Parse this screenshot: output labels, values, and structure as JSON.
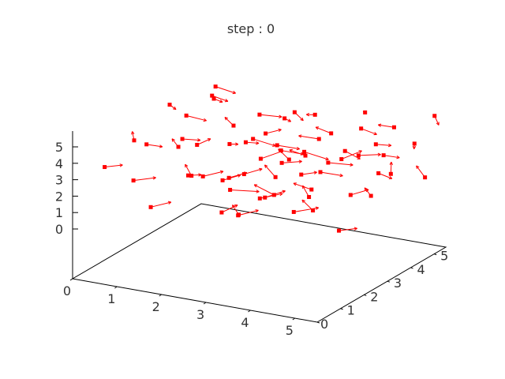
{
  "chart_data": {
    "type": "scatter",
    "projection": "3d",
    "title": "step : 0",
    "xlabel": "",
    "ylabel": "",
    "zlabel": "",
    "xlim": [
      0,
      5.5
    ],
    "ylim": [
      0,
      5.5
    ],
    "zlim": [
      0,
      6
    ],
    "x_ticks": [
      "0",
      "1",
      "2",
      "3",
      "4",
      "5"
    ],
    "y_ticks": [
      "0",
      "1",
      "2",
      "3",
      "4",
      "5"
    ],
    "z_ticks": [
      "0",
      "1",
      "2",
      "3",
      "4",
      "5"
    ],
    "grid": false,
    "legend": "none",
    "marker": "filled-square",
    "arrows": true,
    "color": "#ff0000",
    "series": [
      {
        "points": [
          {
            "x": 0.6,
            "y": 4.9,
            "z": 4.2,
            "dx": 0.3,
            "dy": -0.2,
            "dz": 0.1
          },
          {
            "x": 0.9,
            "y": 4.4,
            "z": 5.5,
            "dx": 0.4,
            "dy": 0.1,
            "dz": -0.3
          },
          {
            "x": 1.4,
            "y": 3.3,
            "z": 6.1,
            "dx": 0.2,
            "dy": 0.3,
            "dz": -0.5
          },
          {
            "x": 1.2,
            "y": 4.6,
            "z": 3.1,
            "dx": -0.3,
            "dy": 0.2,
            "dz": 0.2
          },
          {
            "x": 2.1,
            "y": 4.0,
            "z": 4.7,
            "dx": 0.5,
            "dy": 0.0,
            "dz": 0.1
          },
          {
            "x": 2.6,
            "y": 3.1,
            "z": 3.0,
            "dx": 0.3,
            "dy": 0.4,
            "dz": 0.3
          },
          {
            "x": 3.0,
            "y": 4.2,
            "z": 2.7,
            "dx": 0.6,
            "dy": -0.1,
            "dz": -0.1
          },
          {
            "x": 3.5,
            "y": 2.6,
            "z": 3.8,
            "dx": -0.4,
            "dy": 0.3,
            "dz": 0.2
          },
          {
            "x": 4.1,
            "y": 3.7,
            "z": 3.2,
            "dx": 0.3,
            "dy": 0.3,
            "dz": 0.4
          },
          {
            "x": 4.6,
            "y": 2.9,
            "z": 4.6,
            "dx": 0.5,
            "dy": -0.3,
            "dz": 0.0
          },
          {
            "x": 5.0,
            "y": 4.1,
            "z": 2.4,
            "dx": -0.2,
            "dy": 0.4,
            "dz": 0.3
          },
          {
            "x": 5.3,
            "y": 3.0,
            "z": 3.5,
            "dx": 0.2,
            "dy": 0.2,
            "dz": -0.4
          },
          {
            "x": 4.8,
            "y": 1.8,
            "z": 4.9,
            "dx": 0.4,
            "dy": 0.3,
            "dz": -0.2
          },
          {
            "x": 3.9,
            "y": 1.2,
            "z": 3.0,
            "dx": -0.5,
            "dy": 0.1,
            "dz": 0.3
          },
          {
            "x": 3.3,
            "y": 0.8,
            "z": 1.8,
            "dx": 0.3,
            "dy": 0.3,
            "dz": 0.2
          },
          {
            "x": 2.7,
            "y": 1.6,
            "z": 2.4,
            "dx": 0.6,
            "dy": 0.1,
            "dz": 0.1
          },
          {
            "x": 2.2,
            "y": 0.9,
            "z": 3.6,
            "dx": -0.3,
            "dy": 0.3,
            "dz": 0.3
          },
          {
            "x": 1.6,
            "y": 1.9,
            "z": 2.5,
            "dx": 0.4,
            "dy": -0.2,
            "dz": 0.4
          },
          {
            "x": 1.1,
            "y": 2.6,
            "z": 3.9,
            "dx": 0.3,
            "dy": 0.2,
            "dz": -0.1
          },
          {
            "x": 0.7,
            "y": 1.3,
            "z": 4.7,
            "dx": -0.2,
            "dy": 0.3,
            "dz": 0.2
          },
          {
            "x": 0.4,
            "y": 2.4,
            "z": 3.4,
            "dx": 0.2,
            "dy": 0.3,
            "dz": -0.3
          },
          {
            "x": 1.9,
            "y": 2.8,
            "z": 1.6,
            "dx": 0.3,
            "dy": 0.2,
            "dz": 0.3
          },
          {
            "x": 2.9,
            "y": 2.2,
            "z": 5.1,
            "dx": 0.4,
            "dy": 0.2,
            "dz": -0.4
          },
          {
            "x": 3.7,
            "y": 3.5,
            "z": 4.4,
            "dx": -0.3,
            "dy": -0.3,
            "dz": 0.3
          },
          {
            "x": 4.4,
            "y": 4.6,
            "z": 3.5,
            "dx": 0.4,
            "dy": -0.1,
            "dz": 0.2
          },
          {
            "x": 5.4,
            "y": 4.8,
            "z": 1.8,
            "dx": -0.3,
            "dy": 0.2,
            "dz": 0.4
          },
          {
            "x": 4.9,
            "y": 5.3,
            "z": 3.2,
            "dx": 0.2,
            "dy": -0.4,
            "dz": 0.1
          },
          {
            "x": 3.8,
            "y": 5.0,
            "z": 2.2,
            "dx": 0.5,
            "dy": 0.0,
            "dz": 0.3
          },
          {
            "x": 2.5,
            "y": 5.2,
            "z": 1.4,
            "dx": -0.2,
            "dy": -0.3,
            "dz": 0.5
          },
          {
            "x": 1.5,
            "y": 5.4,
            "z": 2.1,
            "dx": 0.3,
            "dy": 0.1,
            "dz": 0.3
          },
          {
            "x": 3.1,
            "y": 4.7,
            "z": 1.1,
            "dx": 0.4,
            "dy": 0.2,
            "dz": -0.2
          },
          {
            "x": 4.3,
            "y": 2.1,
            "z": 1.5,
            "dx": -0.4,
            "dy": 0.3,
            "dz": 0.2
          },
          {
            "x": 5.2,
            "y": 1.5,
            "z": 1.2,
            "dx": 0.2,
            "dy": 0.4,
            "dz": -0.1
          },
          {
            "x": 2.0,
            "y": 3.6,
            "z": 3.3,
            "dx": 0.4,
            "dy": -0.2,
            "dz": 0.3
          },
          {
            "x": 1.3,
            "y": 3.1,
            "z": 1.3,
            "dx": 0.3,
            "dy": 0.3,
            "dz": 0.2
          },
          {
            "x": 0.8,
            "y": 3.8,
            "z": 2.4,
            "dx": 0.2,
            "dy": 0.2,
            "dz": 0.3
          },
          {
            "x": 3.4,
            "y": 3.9,
            "z": 5.4,
            "dx": -0.3,
            "dy": 0.2,
            "dz": -0.3
          },
          {
            "x": 4.7,
            "y": 3.4,
            "z": 5.6,
            "dx": 0.3,
            "dy": 0.1,
            "dz": -0.3
          },
          {
            "x": 2.4,
            "y": 4.5,
            "z": 4.2,
            "dx": 0.3,
            "dy": -0.3,
            "dz": 0.2
          },
          {
            "x": 3.6,
            "y": 1.9,
            "z": 5.3,
            "dx": 0.4,
            "dy": 0.2,
            "dz": -0.2
          },
          {
            "x": 1.8,
            "y": 1.1,
            "z": 5.0,
            "dx": -0.3,
            "dy": 0.3,
            "dz": 0.1
          },
          {
            "x": 2.8,
            "y": 2.9,
            "z": 0.9,
            "dx": 0.3,
            "dy": 0.3,
            "dz": 0.3
          },
          {
            "x": 4.0,
            "y": 4.9,
            "z": 5.0,
            "dx": -0.2,
            "dy": 0.3,
            "dz": -0.3
          },
          {
            "x": 5.5,
            "y": 2.3,
            "z": 2.8,
            "dx": -0.3,
            "dy": 0.3,
            "dz": 0.1
          },
          {
            "x": 4.5,
            "y": 0.9,
            "z": 2.5,
            "dx": 0.4,
            "dy": 0.3,
            "dz": 0.2
          },
          {
            "x": 3.2,
            "y": 0.6,
            "z": 4.2,
            "dx": 0.3,
            "dy": 0.2,
            "dz": 0.3
          },
          {
            "x": 1.0,
            "y": 0.7,
            "z": 2.9,
            "dx": 0.4,
            "dy": 0.2,
            "dz": 0.2
          },
          {
            "x": 0.5,
            "y": 3.2,
            "z": 5.2,
            "dx": 0.3,
            "dy": -0.3,
            "dz": 0.1
          },
          {
            "x": 2.3,
            "y": 2.0,
            "z": 0.5,
            "dx": 0.2,
            "dy": 0.3,
            "dz": 0.3
          },
          {
            "x": 3.9,
            "y": 2.8,
            "z": 2.0,
            "dx": -0.3,
            "dy": -0.2,
            "dz": 0.4
          },
          {
            "x": 4.2,
            "y": 3.9,
            "z": 0.9,
            "dx": 0.3,
            "dy": 0.2,
            "dz": 0.3
          },
          {
            "x": 5.1,
            "y": 3.6,
            "z": 4.0,
            "dx": 0.2,
            "dy": 0.3,
            "dz": -0.3
          },
          {
            "x": 1.7,
            "y": 4.1,
            "z": 0.8,
            "dx": 0.3,
            "dy": 0.2,
            "dz": 0.3
          },
          {
            "x": 2.9,
            "y": 3.4,
            "z": 3.4,
            "dx": 0.4,
            "dy": 0.2,
            "dz": -0.2
          },
          {
            "x": 3.5,
            "y": 4.4,
            "z": 3.9,
            "dx": -0.4,
            "dy": 0.1,
            "dz": 0.1
          },
          {
            "x": 0.9,
            "y": 5.0,
            "z": 1.5,
            "dx": 0.3,
            "dy": -0.2,
            "dz": 0.3
          },
          {
            "x": 1.4,
            "y": 2.2,
            "z": 5.8,
            "dx": 0.4,
            "dy": 0.1,
            "dz": -0.2
          },
          {
            "x": 4.6,
            "y": 5.0,
            "z": 4.3,
            "dx": -0.2,
            "dy": -0.3,
            "dz": 0.3
          },
          {
            "x": 5.3,
            "y": 5.4,
            "z": 5.0,
            "dx": 0.2,
            "dy": -0.2,
            "dz": -0.3
          },
          {
            "x": 2.1,
            "y": 5.5,
            "z": 3.6,
            "dx": 0.3,
            "dy": -0.2,
            "dz": -0.2
          },
          {
            "x": 4.0,
            "y": 0.4,
            "z": 3.5,
            "dx": 0.3,
            "dy": 0.4,
            "dz": 0.1
          },
          {
            "x": 3.0,
            "y": 1.4,
            "z": 1.2,
            "dx": -0.3,
            "dy": 0.3,
            "dz": 0.2
          },
          {
            "x": 1.6,
            "y": 0.3,
            "z": 1.9,
            "dx": 0.3,
            "dy": 0.3,
            "dz": 0.2
          },
          {
            "x": 0.3,
            "y": 0.8,
            "z": 3.3,
            "dx": 0.3,
            "dy": 0.2,
            "dz": 0.1
          },
          {
            "x": 5.0,
            "y": 0.6,
            "z": 3.9,
            "dx": -0.3,
            "dy": 0.3,
            "dz": 0.3
          },
          {
            "x": 2.6,
            "y": 4.0,
            "z": 2.0,
            "dx": 0.4,
            "dy": 0.1,
            "dz": 0.2
          },
          {
            "x": 3.3,
            "y": 2.4,
            "z": 2.8,
            "dx": -0.4,
            "dy": 0.3,
            "dz": 0.3
          },
          {
            "x": 4.3,
            "y": 1.6,
            "z": 4.1,
            "dx": 0.3,
            "dy": 0.1,
            "dz": 0.2
          }
        ]
      }
    ]
  }
}
